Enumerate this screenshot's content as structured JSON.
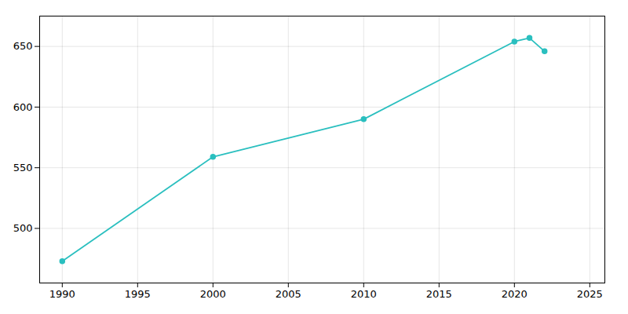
{
  "chart_data": {
    "type": "line",
    "x": [
      1990,
      2000,
      2010,
      2020,
      2021,
      2022
    ],
    "values": [
      473,
      559,
      590,
      654,
      657,
      646
    ],
    "color": "#2ABFBF",
    "marker": "circle",
    "xlim": [
      1988.5,
      2026
    ],
    "ylim": [
      455,
      675
    ],
    "xticks": [
      1990,
      1995,
      2000,
      2005,
      2010,
      2015,
      2020,
      2025
    ],
    "yticks": [
      500,
      550,
      600,
      650
    ],
    "grid": true
  }
}
